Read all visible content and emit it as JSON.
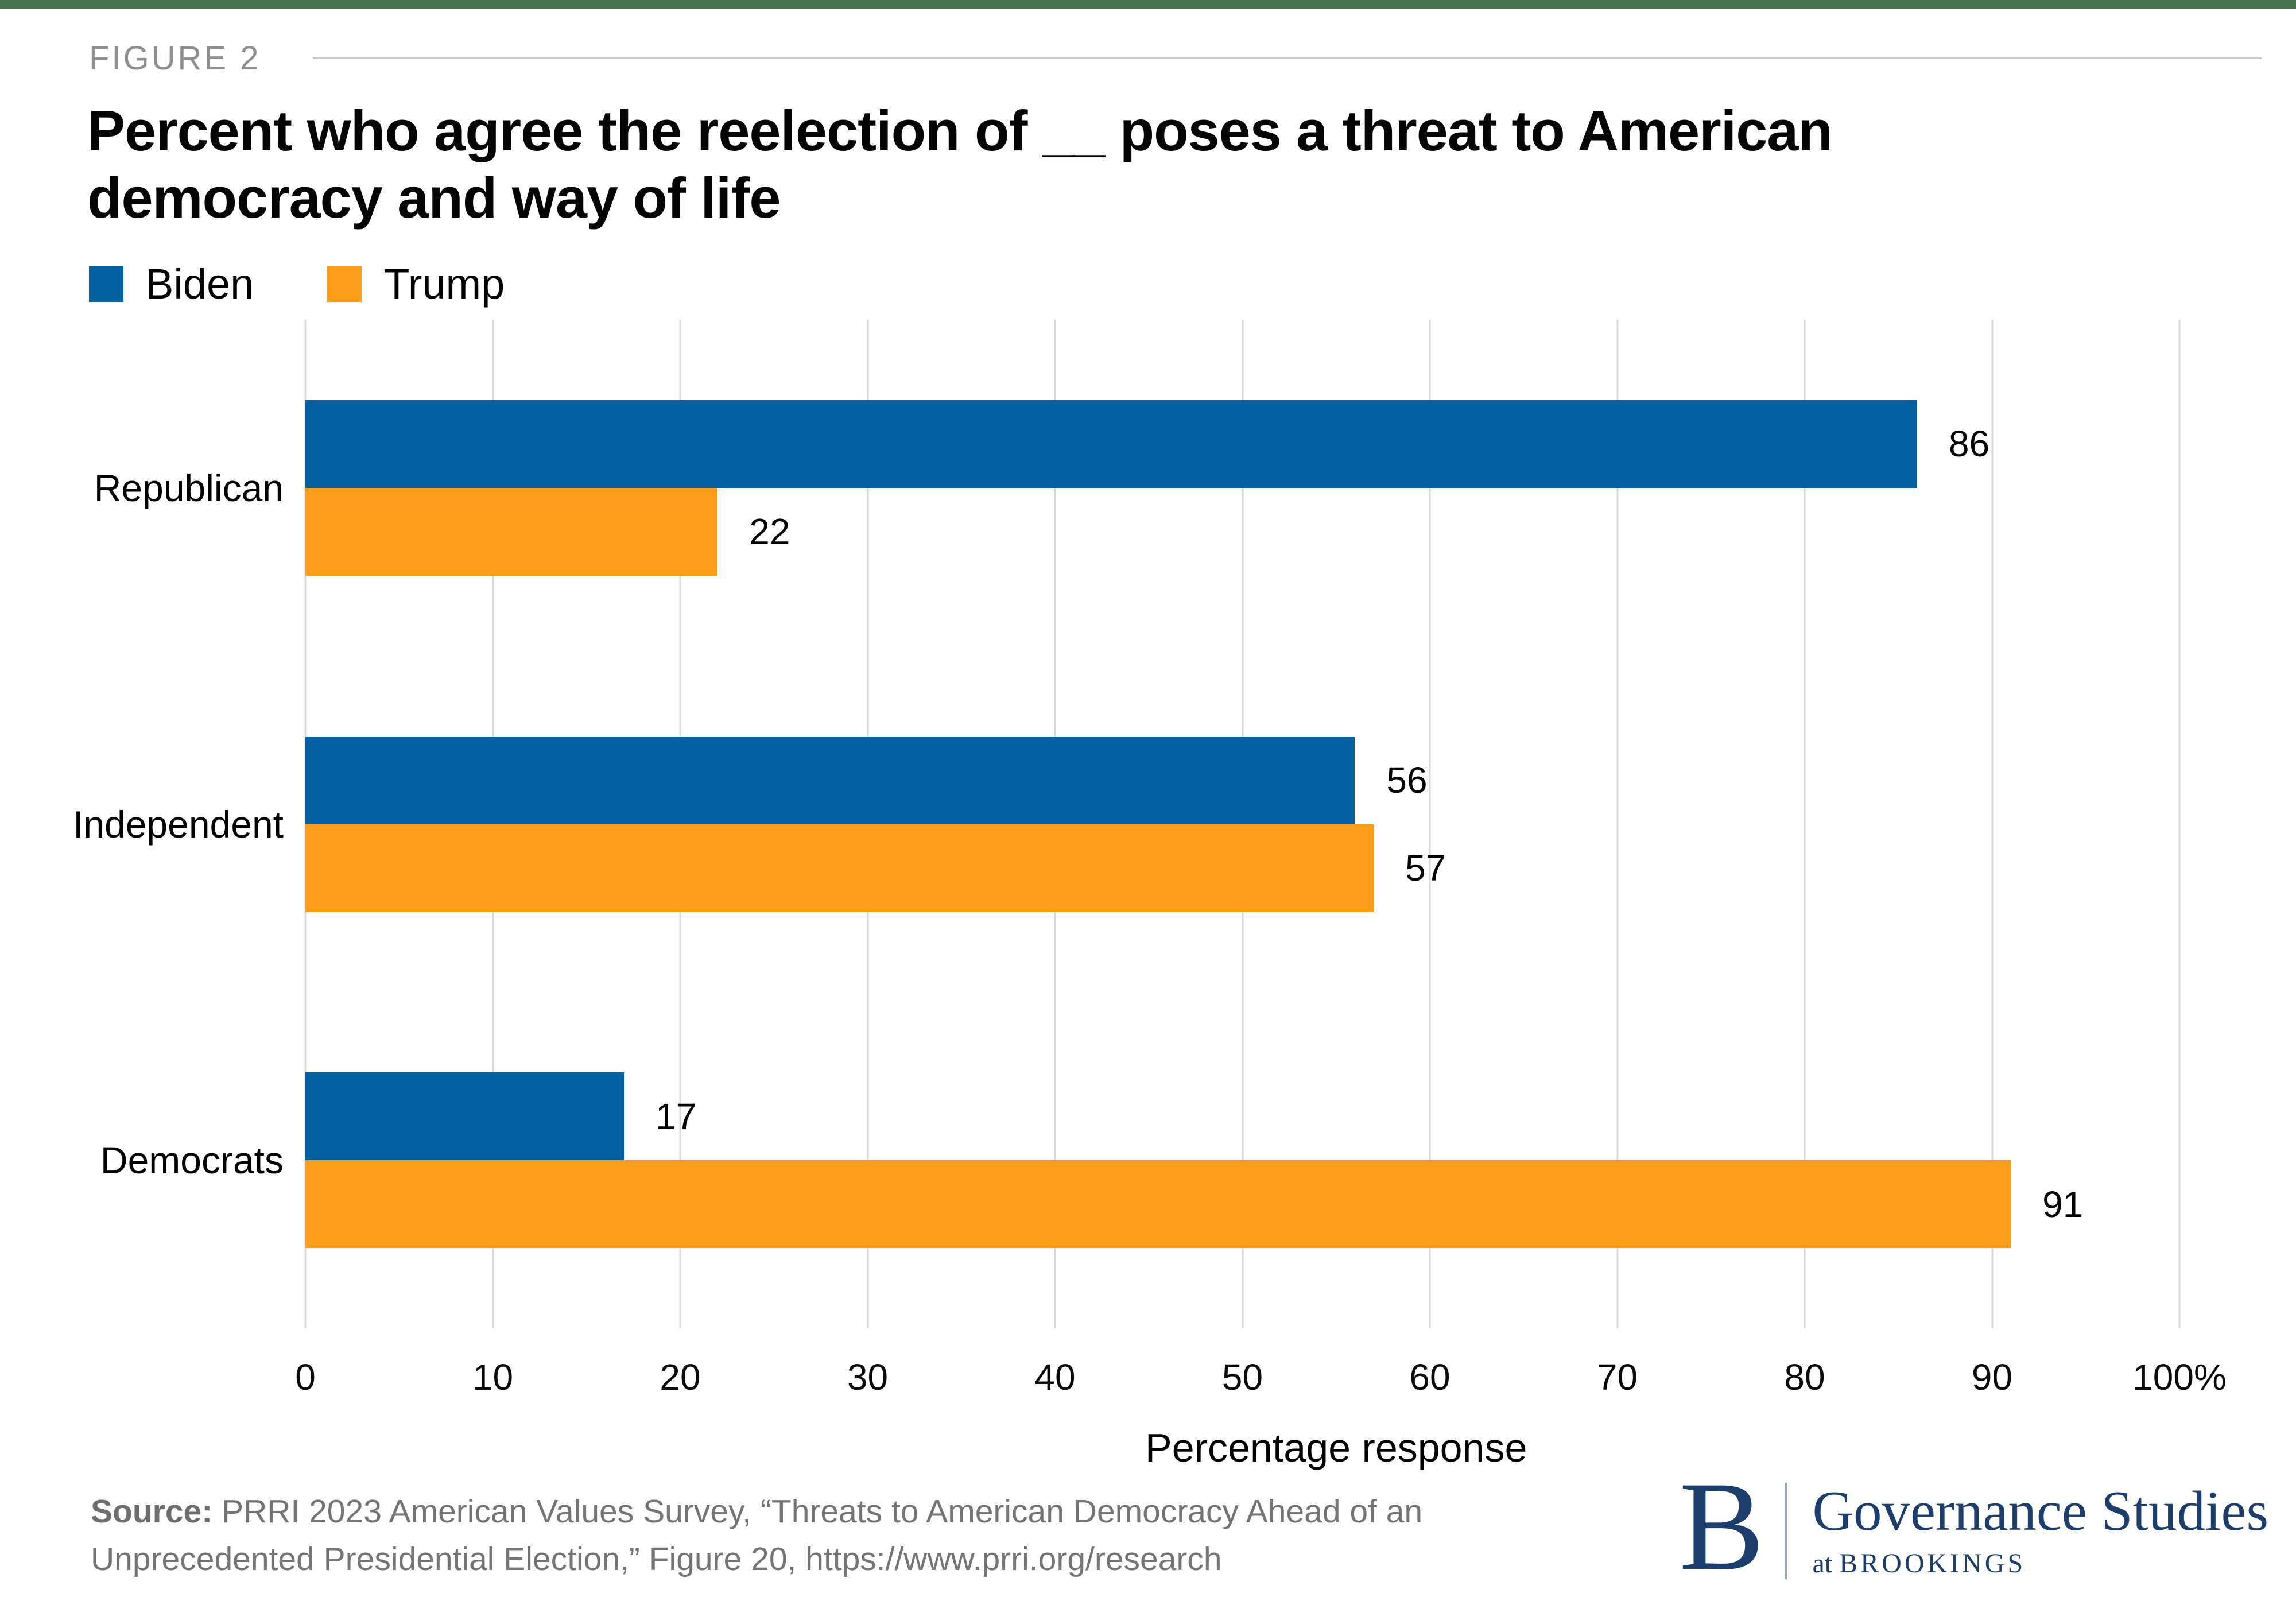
{
  "page": {
    "background": "#ffffff",
    "top_bar_color": "#49724E",
    "gridline_color": "#d9d9d9"
  },
  "header": {
    "figure_label": "FIGURE 2",
    "title_line1": "Percent who agree the reelection of __ poses a threat to American",
    "title_line2": "democracy and way of life"
  },
  "legend": [
    {
      "label": "Biden",
      "color": "#0560A1"
    },
    {
      "label": "Trump",
      "color": "#FC9D1C"
    }
  ],
  "chart_data": {
    "type": "bar",
    "orientation": "horizontal",
    "title": "Percent who agree the reelection of __ poses a threat to American democracy and way of life",
    "categories": [
      "Republican",
      "Independent",
      "Democrats"
    ],
    "series": [
      {
        "name": "Biden",
        "color": "#0560A1",
        "values": [
          86,
          56,
          17
        ]
      },
      {
        "name": "Trump",
        "color": "#FC9D1C",
        "values": [
          22,
          57,
          91
        ]
      }
    ],
    "xlabel": "Percentage response",
    "ylabel": "",
    "xlim": [
      0,
      100
    ],
    "x_ticks": [
      0,
      10,
      20,
      30,
      40,
      50,
      60,
      70,
      80,
      90,
      100
    ],
    "x_tick_labels": [
      "0",
      "10",
      "20",
      "30",
      "40",
      "50",
      "60",
      "70",
      "80",
      "90",
      "100%"
    ],
    "grid": "vertical",
    "value_labels": true,
    "legend_position": "top-left"
  },
  "source": {
    "prefix": "Source:",
    "line1": "PRRI 2023 American Values Survey, “Threats to American Democracy Ahead of an",
    "line2": "Unprecedented Presidential Election,” Figure 20, https://www.prri.org/research"
  },
  "logo": {
    "initial": "B",
    "name": "Governance Studies",
    "tagline_prefix": "at",
    "tagline": "BROOKINGS",
    "color": "#1D3D6B"
  }
}
